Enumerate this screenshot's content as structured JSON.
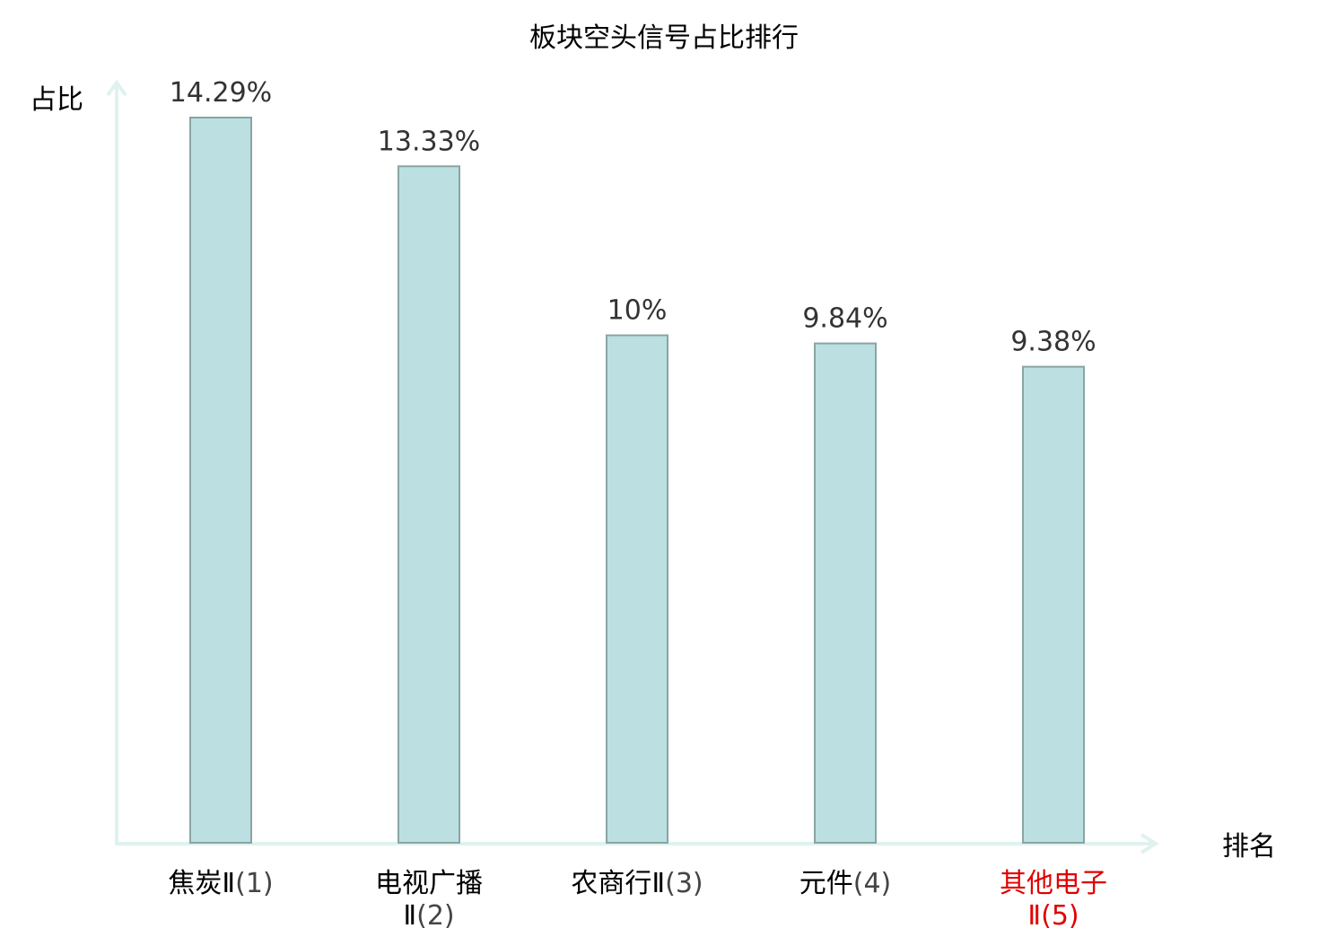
{
  "chart_data": {
    "type": "bar",
    "title": "板块空头信号占比排行",
    "ylabel": "占比",
    "xlabel": "排名",
    "categories": [
      {
        "name_lines": [
          "焦炭Ⅱ"
        ],
        "rank": "(1)",
        "highlight": false
      },
      {
        "name_lines": [
          "电视广播",
          "Ⅱ"
        ],
        "rank": "(2)",
        "highlight": false
      },
      {
        "name_lines": [
          "农商行Ⅱ"
        ],
        "rank": "(3)",
        "highlight": false
      },
      {
        "name_lines": [
          "元件"
        ],
        "rank": "(4)",
        "highlight": false
      },
      {
        "name_lines": [
          "其他电子",
          "Ⅱ"
        ],
        "rank": "(5)",
        "highlight": true
      }
    ],
    "values": [
      14.29,
      13.33,
      10,
      9.84,
      9.38
    ],
    "value_labels": [
      "14.29%",
      "13.33%",
      "10%",
      "9.84%",
      "9.38%"
    ],
    "ylim": [
      0,
      14.29
    ],
    "grid": false,
    "colors": {
      "bar_fill": "#bce0e1",
      "bar_stroke": "#8aa4a4",
      "axis": "#dff2ef",
      "text": "#333333",
      "label_text": "#000000",
      "highlight_text": "#e00000",
      "rank_text": "#444444"
    }
  }
}
